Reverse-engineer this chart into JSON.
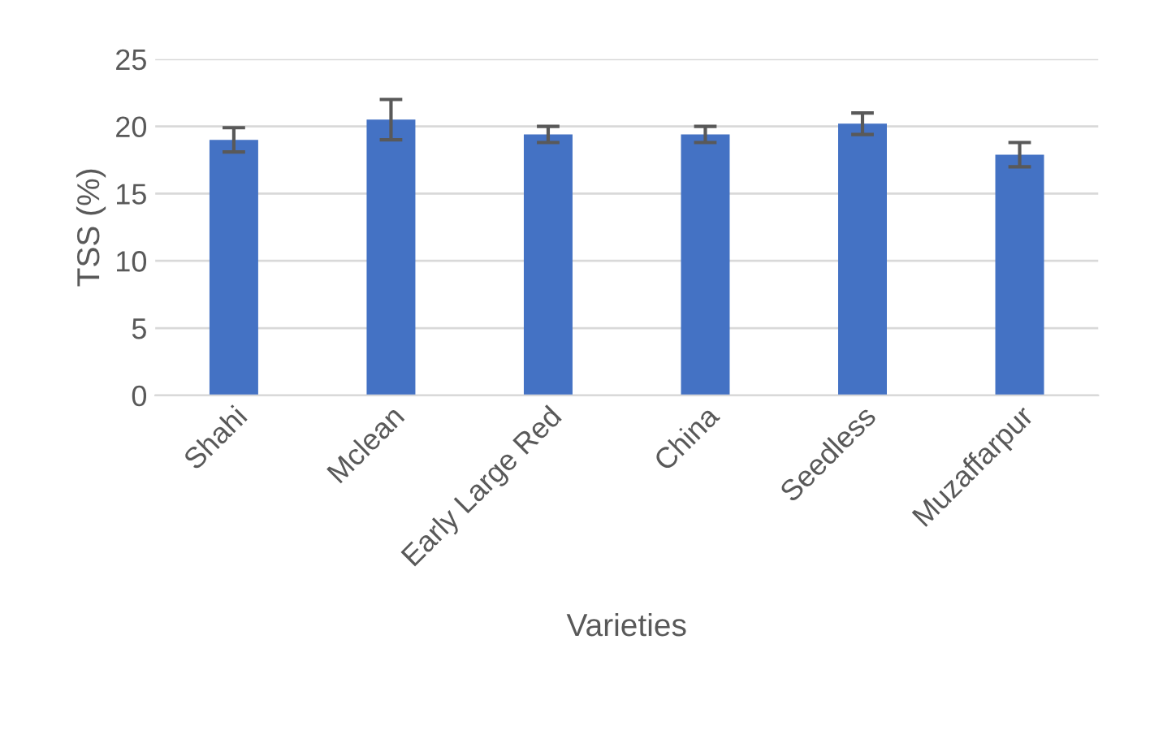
{
  "chart_data": {
    "type": "bar",
    "xlabel": "Varieties",
    "ylabel": "TSS (%)",
    "categories": [
      "Shahi",
      "Mclean",
      "Early Large Red",
      "China",
      "Seedless",
      "Muzaffarpur"
    ],
    "values": [
      19.0,
      20.5,
      19.4,
      19.4,
      20.2,
      17.9
    ],
    "errors": [
      0.9,
      1.5,
      0.6,
      0.6,
      0.8,
      0.9
    ],
    "color": "#4472c4",
    "ylim": [
      0,
      25
    ],
    "yticks": [
      0,
      5,
      10,
      15,
      20,
      25
    ],
    "grid": "y"
  }
}
